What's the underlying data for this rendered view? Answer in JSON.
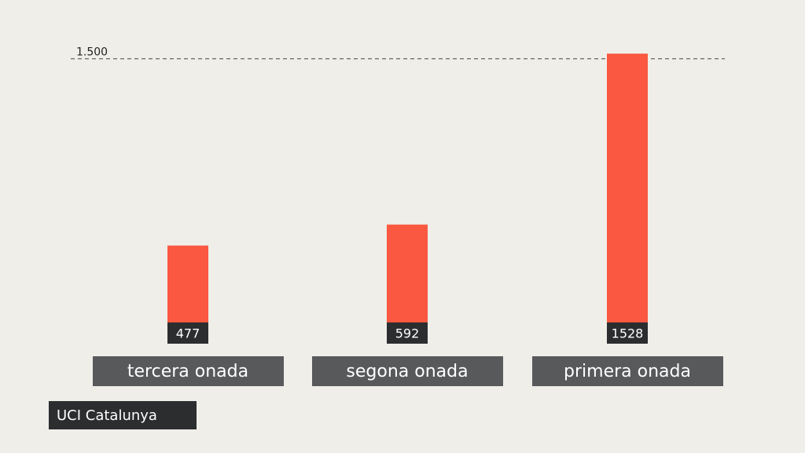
{
  "chart_data": {
    "type": "bar",
    "categories": [
      "tercera onada",
      "segona onada",
      "primera onada"
    ],
    "series": [
      {
        "name": "UCI Catalunya",
        "color": "#fa5840",
        "values": [
          477,
          592,
          1528
        ]
      }
    ],
    "ylim": [
      0,
      1600
    ],
    "yticks": [
      {
        "value": 1500,
        "label": "1.500"
      }
    ]
  }
}
